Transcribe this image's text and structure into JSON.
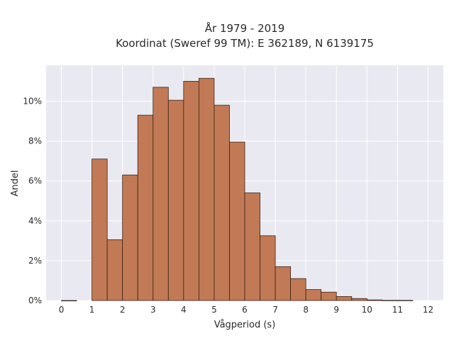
{
  "chart_data": {
    "type": "bar",
    "title": [
      "År 1979 - 2019",
      "Koordinat (Sweref 99 TM): E 362189, N 6139175"
    ],
    "xlabel": "Vågperiod (s)",
    "ylabel": "Andel",
    "bin_width": 0.5,
    "bins": [
      {
        "x": 0.0,
        "value": 0.0
      },
      {
        "x": 1.0,
        "value": 7.1
      },
      {
        "x": 1.5,
        "value": 3.05
      },
      {
        "x": 2.0,
        "value": 6.3
      },
      {
        "x": 2.5,
        "value": 9.3
      },
      {
        "x": 3.0,
        "value": 10.7
      },
      {
        "x": 3.5,
        "value": 10.05
      },
      {
        "x": 4.0,
        "value": 11.0
      },
      {
        "x": 4.5,
        "value": 11.15
      },
      {
        "x": 5.0,
        "value": 9.8
      },
      {
        "x": 5.5,
        "value": 7.95
      },
      {
        "x": 6.0,
        "value": 5.4
      },
      {
        "x": 6.5,
        "value": 3.25
      },
      {
        "x": 7.0,
        "value": 1.7
      },
      {
        "x": 7.5,
        "value": 1.1
      },
      {
        "x": 8.0,
        "value": 0.55
      },
      {
        "x": 8.5,
        "value": 0.42
      },
      {
        "x": 9.0,
        "value": 0.2
      },
      {
        "x": 9.5,
        "value": 0.1
      },
      {
        "x": 10.0,
        "value": 0.03
      },
      {
        "x": 10.5,
        "value": 0.01
      },
      {
        "x": 11.0,
        "value": 0.01
      }
    ],
    "xlim": [
      -0.5,
      12.5
    ],
    "ylim": [
      0,
      11.8
    ],
    "x_ticks": [
      {
        "value": 0,
        "label": "0"
      },
      {
        "value": 1,
        "label": "1"
      },
      {
        "value": 2,
        "label": "2"
      },
      {
        "value": 3,
        "label": "3"
      },
      {
        "value": 4,
        "label": "4"
      },
      {
        "value": 5,
        "label": "5"
      },
      {
        "value": 6,
        "label": "6"
      },
      {
        "value": 7,
        "label": "7"
      },
      {
        "value": 8,
        "label": "8"
      },
      {
        "value": 9,
        "label": "9"
      },
      {
        "value": 10,
        "label": "10"
      },
      {
        "value": 11,
        "label": "11"
      },
      {
        "value": 12,
        "label": "12"
      }
    ],
    "y_ticks": [
      {
        "value": 0,
        "label": "0%"
      },
      {
        "value": 2,
        "label": "2%"
      },
      {
        "value": 4,
        "label": "4%"
      },
      {
        "value": 6,
        "label": "6%"
      },
      {
        "value": 8,
        "label": "8%"
      },
      {
        "value": 10,
        "label": "10%"
      }
    ],
    "grid": true,
    "colors": {
      "bar_fill": "#c17a55",
      "bar_edge": "#3b2216",
      "plot_background": "#e9e9f1",
      "grid": "#ffffff"
    }
  }
}
